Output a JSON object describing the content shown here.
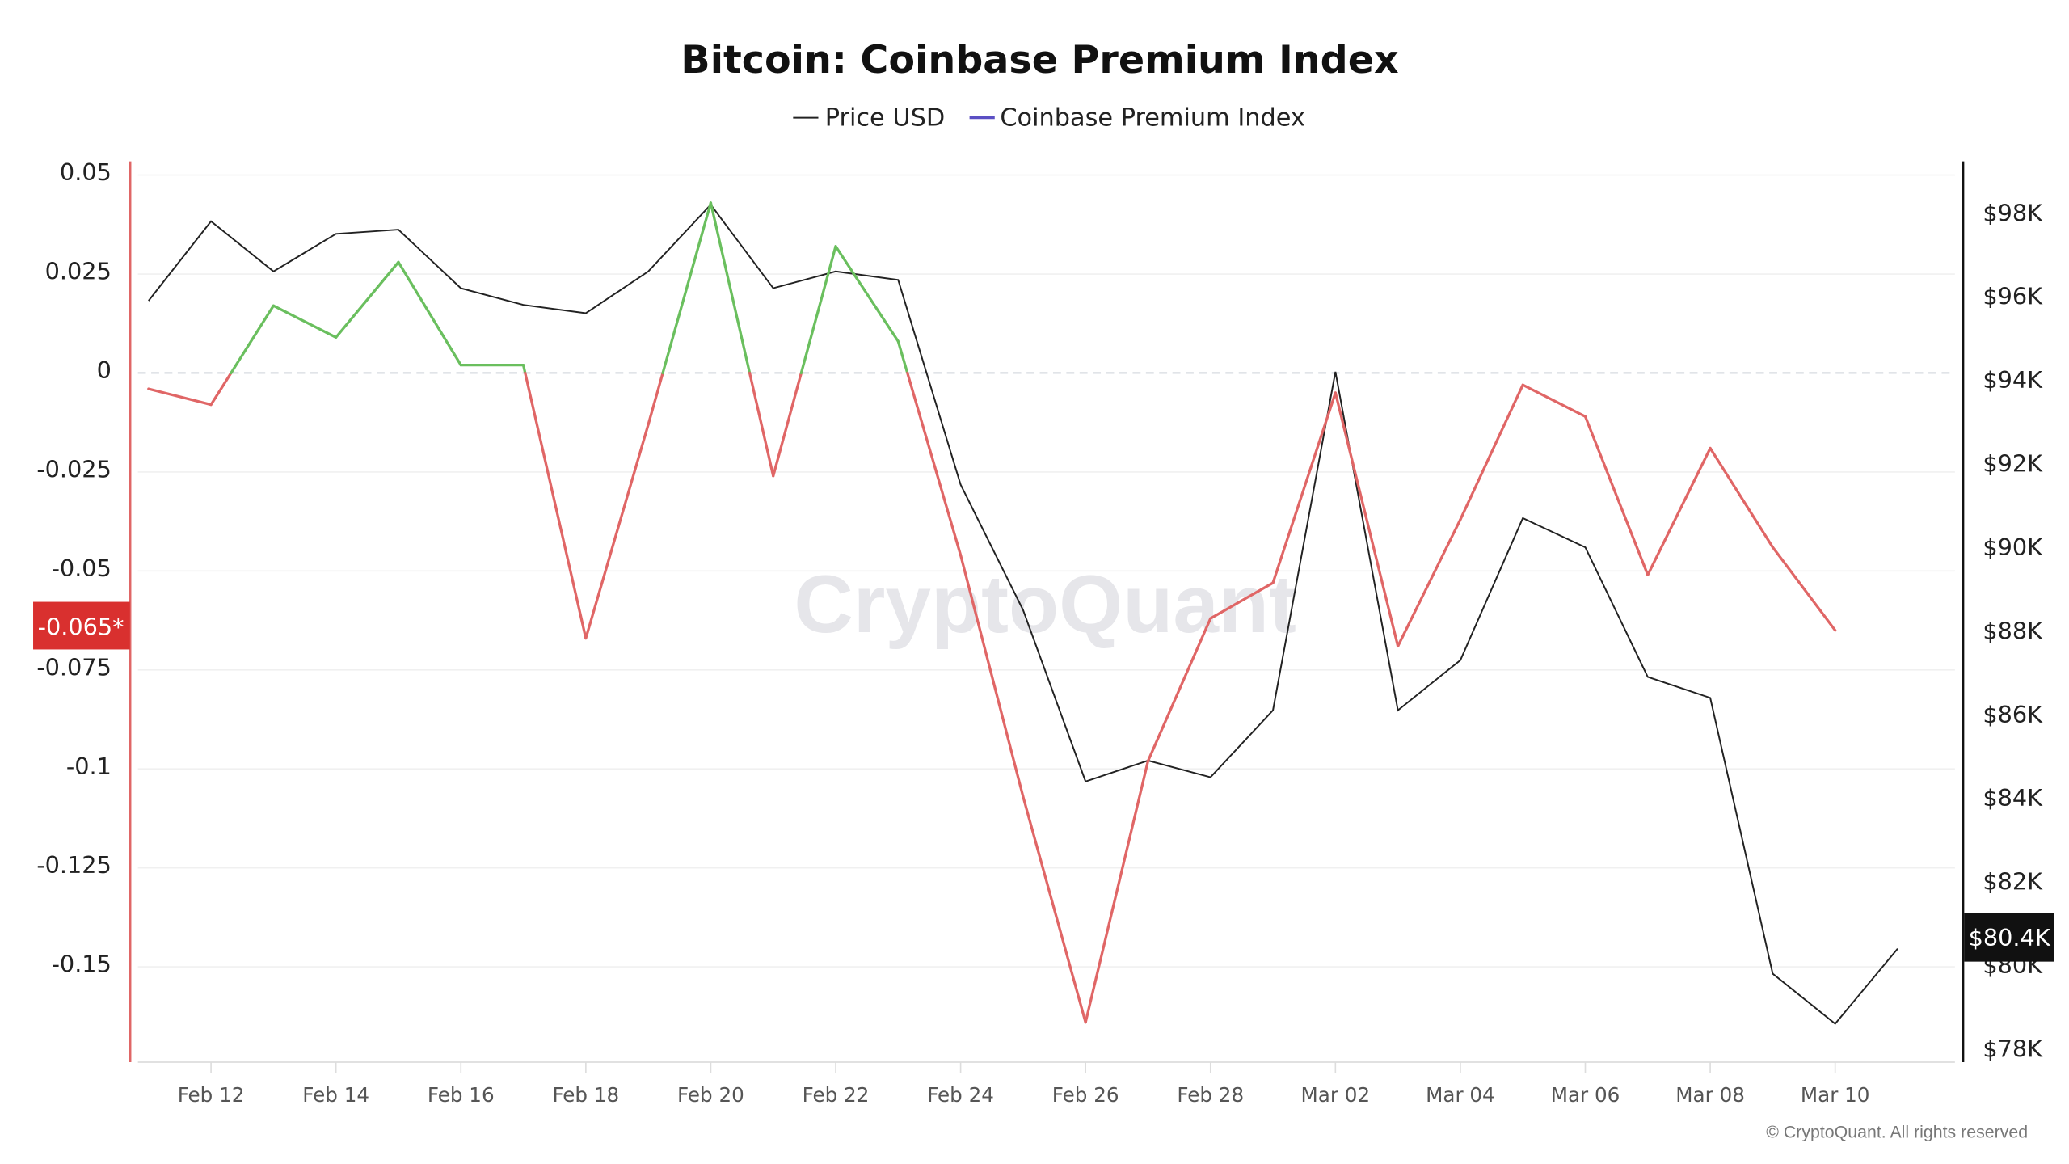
{
  "header": {
    "title": "Bitcoin: Coinbase Premium Index"
  },
  "legend": [
    {
      "label": "Price USD",
      "color": "#222222"
    },
    {
      "label": "Coinbase Premium Index",
      "color": "#5b4fc4"
    }
  ],
  "watermark": "CryptoQuant",
  "footer": "© CryptoQuant. All rights reserved",
  "left_axis": {
    "ticks": [
      "0.05",
      "0.025",
      "0",
      "-0.025",
      "-0.05",
      "-0.075",
      "-0.1",
      "-0.125",
      "-0.15"
    ],
    "current_badge": "-0.065*",
    "badge_color": "#d9302f"
  },
  "right_axis": {
    "ticks": [
      "$98K",
      "$96K",
      "$94K",
      "$92K",
      "$90K",
      "$88K",
      "$86K",
      "$84K",
      "$82K",
      "$80K",
      "$78K"
    ],
    "current_badge": "$80.4K",
    "badge_color": "#111111"
  },
  "x_axis": {
    "ticks": [
      "Feb 12",
      "Feb 14",
      "Feb 16",
      "Feb 18",
      "Feb 20",
      "Feb 22",
      "Feb 24",
      "Feb 26",
      "Feb 28",
      "Mar 02",
      "Mar 04",
      "Mar 06",
      "Mar 08",
      "Mar 10"
    ]
  },
  "colors": {
    "premium_positive": "#6abf5e",
    "premium_negative": "#e06666",
    "price": "#222222",
    "zero_line": "#b0b8c4",
    "grid": "#f0f0f0"
  },
  "chart_data": {
    "type": "line",
    "title": "Bitcoin: Coinbase Premium Index",
    "xlabel": "",
    "ylabel": "Coinbase Premium Index",
    "y2label": "Price USD",
    "x": [
      "Feb 11",
      "Feb 12",
      "Feb 13",
      "Feb 14",
      "Feb 15",
      "Feb 16",
      "Feb 17",
      "Feb 18",
      "Feb 19",
      "Feb 20",
      "Feb 21",
      "Feb 22",
      "Feb 23",
      "Feb 24",
      "Feb 25",
      "Feb 26",
      "Feb 27",
      "Feb 28",
      "Mar 01",
      "Mar 02",
      "Mar 03",
      "Mar 04",
      "Mar 05",
      "Mar 06",
      "Mar 07",
      "Mar 08",
      "Mar 09",
      "Mar 10",
      "Mar 11"
    ],
    "series": [
      {
        "name": "Coinbase Premium Index",
        "axis": "left",
        "values": [
          -0.004,
          -0.008,
          0.017,
          0.009,
          0.028,
          0.002,
          0.002,
          -0.067,
          -0.013,
          0.043,
          -0.026,
          0.032,
          0.008,
          -0.046,
          -0.107,
          -0.164,
          -0.098,
          -0.062,
          -0.053,
          -0.005,
          -0.069,
          -0.037,
          -0.003,
          -0.011,
          -0.051,
          -0.019,
          -0.044,
          -0.065,
          null
        ]
      },
      {
        "name": "Price USD",
        "axis": "right",
        "values": [
          95900,
          97800,
          96600,
          97500,
          97600,
          96200,
          95800,
          95600,
          96600,
          98200,
          96200,
          96600,
          96400,
          91500,
          88500,
          84400,
          84900,
          84500,
          86100,
          94200,
          86100,
          87300,
          90700,
          90000,
          86900,
          86400,
          79800,
          78600,
          80400
        ]
      }
    ],
    "ylim": [
      -0.17,
      0.05
    ],
    "y2lim": [
      78000,
      99000
    ],
    "zero_line": true,
    "grid": true,
    "legend_position": "top-center",
    "current_values": {
      "premium": "-0.065*",
      "price": "$80.4K"
    }
  }
}
